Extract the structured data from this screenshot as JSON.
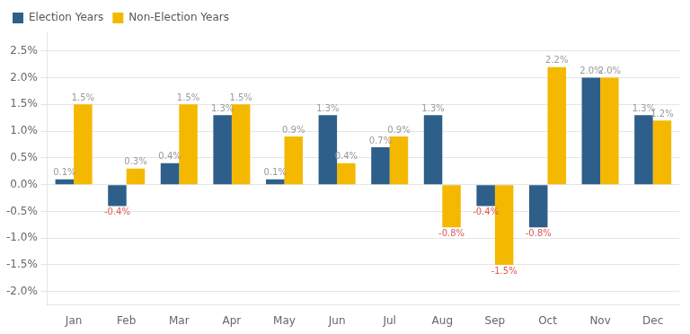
{
  "chart_data": {
    "type": "bar",
    "categories": [
      "Jan",
      "Feb",
      "Mar",
      "Apr",
      "May",
      "Jun",
      "Jul",
      "Aug",
      "Sep",
      "Oct",
      "Nov",
      "Dec"
    ],
    "series": [
      {
        "name": "Election Years",
        "color": "#2e5f8a",
        "values": [
          0.1,
          -0.4,
          0.4,
          1.3,
          0.1,
          1.3,
          0.7,
          1.3,
          -0.4,
          -0.8,
          2.0,
          1.3
        ],
        "value_labels": [
          "0.1%",
          "-0.4%",
          "0.4%",
          "1.3%",
          "0.1%",
          "1.3%",
          "0.7%",
          "1.3%",
          "-0.4%",
          "-0.8%",
          "2.0%",
          "1.3%"
        ]
      },
      {
        "name": "Non-Election Years",
        "color": "#f5b800",
        "values": [
          1.5,
          0.3,
          1.5,
          1.5,
          0.9,
          0.4,
          0.9,
          -0.8,
          -1.5,
          2.2,
          2.0,
          1.2
        ],
        "value_labels": [
          "1.5%",
          "0.3%",
          "1.5%",
          "1.5%",
          "0.9%",
          "0.4%",
          "0.9%",
          "-0.8%",
          "-1.5%",
          "2.2%",
          "2.0%",
          "1.2%"
        ]
      }
    ],
    "ylim": [
      -2.25,
      2.85
    ],
    "yticks": [
      {
        "value": -2.0,
        "label": "-2.0%"
      },
      {
        "value": -1.5,
        "label": "-1.5%"
      },
      {
        "value": -1.0,
        "label": "-1.0%"
      },
      {
        "value": -0.5,
        "label": "-0.5%"
      },
      {
        "value": 0.0,
        "label": "0.0%"
      },
      {
        "value": 0.5,
        "label": "0.5%"
      },
      {
        "value": 1.0,
        "label": "1.0%"
      },
      {
        "value": 1.5,
        "label": "1.5%"
      },
      {
        "value": 2.0,
        "label": "2.0%"
      },
      {
        "value": 2.5,
        "label": "2.5%"
      }
    ],
    "grid": true,
    "legend": "upper left",
    "data_labels": true
  }
}
